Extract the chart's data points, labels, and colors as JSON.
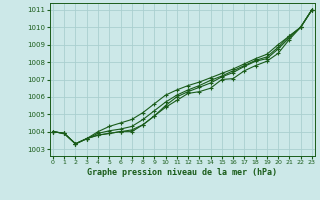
{
  "title": "Graphe pression niveau de la mer (hPa)",
  "bg_color": "#cce8e8",
  "grid_color": "#aacfcf",
  "line_color": "#1a5c1a",
  "x_ticks": [
    0,
    1,
    2,
    3,
    4,
    5,
    6,
    7,
    8,
    9,
    10,
    11,
    12,
    13,
    14,
    15,
    16,
    17,
    18,
    19,
    20,
    21,
    22,
    23
  ],
  "y_ticks": [
    1003,
    1004,
    1005,
    1006,
    1007,
    1008,
    1009,
    1010,
    1011
  ],
  "ylim": [
    1002.6,
    1011.4
  ],
  "xlim": [
    -0.3,
    23.3
  ],
  "lines": [
    [
      1004.0,
      1003.9,
      1003.3,
      1003.6,
      1003.8,
      1003.9,
      1004.0,
      1004.0,
      1004.4,
      1004.9,
      1005.4,
      1005.8,
      1006.2,
      1006.3,
      1006.5,
      1007.0,
      1007.05,
      1007.5,
      1007.8,
      1008.05,
      1008.5,
      1009.3,
      1010.0,
      1011.0
    ],
    [
      1004.0,
      1003.9,
      1003.3,
      1003.6,
      1003.8,
      1003.9,
      1004.0,
      1004.1,
      1004.4,
      1004.9,
      1005.5,
      1006.0,
      1006.3,
      1006.55,
      1006.8,
      1007.15,
      1007.4,
      1007.75,
      1008.05,
      1008.2,
      1008.75,
      1009.4,
      1010.0,
      1011.0
    ],
    [
      1004.0,
      1003.9,
      1003.3,
      1003.6,
      1003.9,
      1004.05,
      1004.15,
      1004.3,
      1004.7,
      1005.2,
      1005.7,
      1006.1,
      1006.4,
      1006.65,
      1006.95,
      1007.2,
      1007.5,
      1007.8,
      1008.1,
      1008.3,
      1008.85,
      1009.5,
      1010.0,
      1011.0
    ],
    [
      1004.0,
      1003.9,
      1003.3,
      1003.6,
      1004.0,
      1004.3,
      1004.5,
      1004.7,
      1005.1,
      1005.6,
      1006.1,
      1006.4,
      1006.65,
      1006.85,
      1007.1,
      1007.35,
      1007.6,
      1007.9,
      1008.2,
      1008.45,
      1009.0,
      1009.5,
      1010.0,
      1011.0
    ]
  ],
  "marker_style": "+",
  "marker_size": 3.5
}
